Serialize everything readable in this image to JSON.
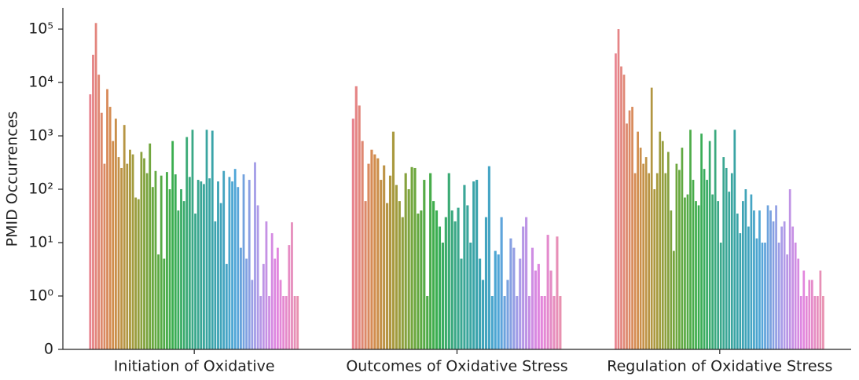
{
  "chart_data": {
    "type": "grouped-bar",
    "y_label": "PMID Occurrences",
    "yscale": "symlog",
    "linthresh": 1,
    "ylim": [
      0,
      250000
    ],
    "yticks": [
      0,
      {
        "value": 1,
        "label": "10⁰"
      },
      {
        "value": 10,
        "label": "10¹"
      },
      {
        "value": 100,
        "label": "10²"
      },
      {
        "value": 1000,
        "label": "10³"
      },
      {
        "value": 10000,
        "label": "10⁴"
      },
      {
        "value": 100000,
        "label": "10⁵"
      }
    ],
    "palette": [
      "#e8838f",
      "#d48c4e",
      "#a69a3d",
      "#6aa83e",
      "#3aae4f",
      "#3aa88a",
      "#3aa3ad",
      "#4fa6d8",
      "#a99ce8",
      "#e285e0",
      "#e891b0"
    ],
    "groups": [
      {
        "name": "Initiation of Oxidative",
        "values": [
          6000,
          33000,
          130000,
          14000,
          2700,
          300,
          7500,
          3500,
          800,
          2100,
          400,
          250,
          1600,
          300,
          550,
          450,
          70,
          65,
          500,
          380,
          200,
          720,
          110,
          220,
          6,
          180,
          5,
          210,
          100,
          800,
          190,
          40,
          100,
          60,
          950,
          170,
          1300,
          35,
          150,
          140,
          125,
          1300,
          160,
          1250,
          25,
          140,
          55,
          220,
          4,
          170,
          140,
          240,
          110,
          8,
          190,
          5,
          150,
          2,
          320,
          50,
          1,
          4,
          25,
          1,
          15,
          5,
          8,
          2,
          1,
          1,
          9,
          24,
          1,
          1
        ]
      },
      {
        "name": "Outcomes of Oxidative Stress",
        "values": [
          2100,
          8500,
          3700,
          800,
          60,
          300,
          550,
          450,
          380,
          150,
          280,
          55,
          180,
          1200,
          120,
          60,
          30,
          200,
          100,
          260,
          250,
          35,
          40,
          150,
          1,
          200,
          60,
          40,
          20,
          10,
          30,
          200,
          40,
          25,
          45,
          5,
          120,
          50,
          10,
          140,
          150,
          5,
          2,
          30,
          270,
          1,
          7,
          6,
          30,
          1,
          2,
          12,
          8,
          1,
          5,
          20,
          30,
          1,
          8,
          3,
          4,
          1,
          1,
          14,
          3,
          1,
          13,
          1
        ]
      },
      {
        "name": "Regulation of Oxidative Stress",
        "values": [
          35000,
          100000,
          20000,
          14000,
          1700,
          3000,
          3500,
          200,
          1200,
          600,
          300,
          400,
          200,
          8000,
          100,
          200,
          1200,
          800,
          200,
          500,
          40,
          7,
          300,
          230,
          600,
          70,
          80,
          1300,
          150,
          60,
          50,
          1100,
          240,
          150,
          800,
          80,
          1300,
          60,
          10,
          400,
          250,
          90,
          200,
          1300,
          35,
          15,
          60,
          100,
          20,
          80,
          40,
          12,
          40,
          10,
          10,
          50,
          40,
          25,
          50,
          10,
          20,
          25,
          6,
          100,
          20,
          10,
          5,
          1,
          3,
          1,
          2,
          2,
          1,
          1,
          3,
          1
        ]
      }
    ]
  }
}
